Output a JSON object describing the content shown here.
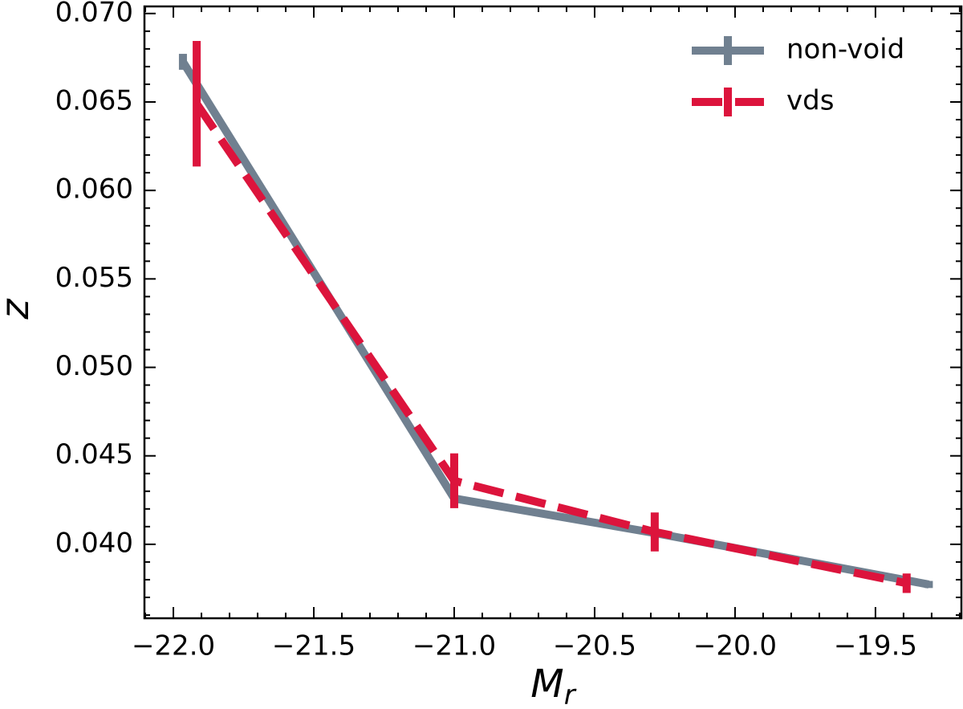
{
  "chart_data": {
    "type": "line",
    "xlabel": "M",
    "xlabel_sub": "r",
    "ylabel": "z",
    "series": [
      {
        "name": "non-void",
        "color": "#708090",
        "dash": false,
        "x": [
          -21.966,
          -21.0,
          -20.286,
          -19.31
        ],
        "values": [
          0.06727,
          0.04259,
          0.04064,
          0.03773
        ],
        "errors": [
          0.00045,
          0.0003,
          0.0003,
          0.0002
        ]
      },
      {
        "name": "vds",
        "color": "#dc143c",
        "dash": true,
        "x": [
          -21.917,
          -21.0,
          -20.286,
          -19.389
        ],
        "values": [
          0.0649,
          0.04359,
          0.0407,
          0.0378
        ],
        "errors": [
          0.00355,
          0.00155,
          0.0011,
          0.00055
        ]
      }
    ],
    "xlim": [
      -22.103,
      -19.194
    ],
    "ylim": [
      0.03582,
      0.0704
    ],
    "xticks": [
      {
        "value": -22,
        "label": "−22.0"
      },
      {
        "value": -21.5,
        "label": "−21.5"
      },
      {
        "value": -21,
        "label": "−21.0"
      },
      {
        "value": -20.5,
        "label": "−20.5"
      },
      {
        "value": -20,
        "label": "−20.0"
      },
      {
        "value": -19.5,
        "label": "−19.5"
      }
    ],
    "yticks": [
      {
        "value": 0.04,
        "label": "0.040"
      },
      {
        "value": 0.045,
        "label": "0.045"
      },
      {
        "value": 0.05,
        "label": "0.050"
      },
      {
        "value": 0.055,
        "label": "0.055"
      },
      {
        "value": 0.06,
        "label": "0.060"
      },
      {
        "value": 0.065,
        "label": "0.065"
      },
      {
        "value": 0.07,
        "label": "0.070"
      }
    ],
    "minor_per_major": 5,
    "grid": false,
    "legend": "upper right"
  }
}
